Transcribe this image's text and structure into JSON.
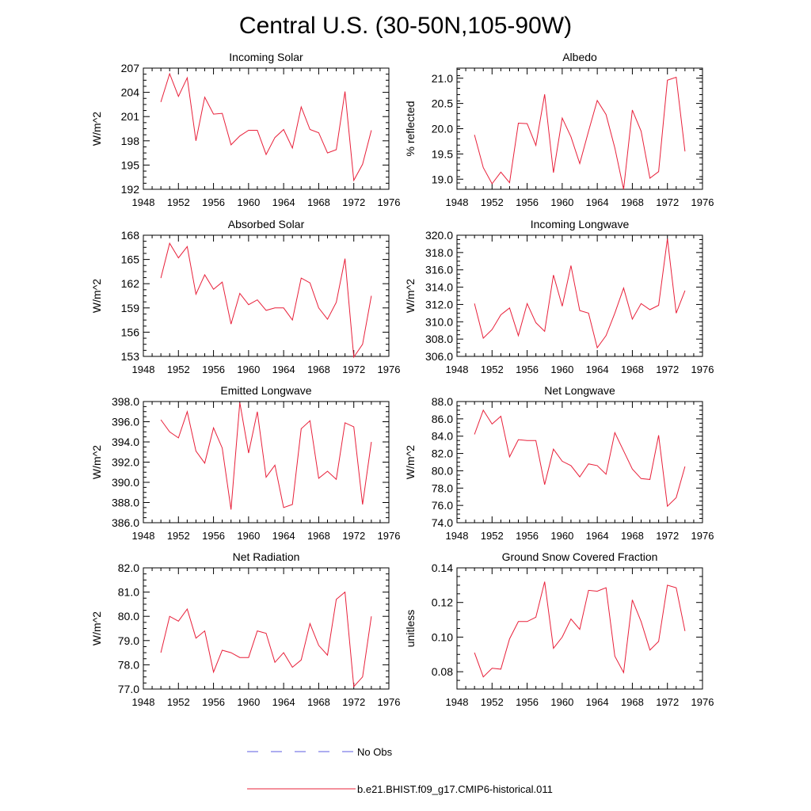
{
  "figure": {
    "title": "Central U.S. (30-50N,105-90W)"
  },
  "legend": {
    "position": "bottom-center",
    "entries": [
      {
        "label": "No Obs",
        "color": "#5b5be0",
        "style": "dashed"
      },
      {
        "label": "b.e21.BHIST.f09_g17.CMIP6-historical.011",
        "color": "#e8203a",
        "style": "solid"
      }
    ]
  },
  "chart_data": [
    {
      "type": "line",
      "title": "Incoming Solar",
      "xlabel": "",
      "ylabel": "W/m^2",
      "xlim": [
        1948,
        1976
      ],
      "ylim": [
        192,
        207
      ],
      "xticks": [
        1948,
        1952,
        1956,
        1960,
        1964,
        1968,
        1972,
        1976
      ],
      "yticks": [
        192,
        195,
        198,
        201,
        204,
        207
      ],
      "ytick_labels": [
        "192",
        "195",
        "198",
        "201",
        "204",
        "207"
      ],
      "color": "#e8203a",
      "x": [
        1950,
        1951,
        1952,
        1953,
        1954,
        1955,
        1956,
        1957,
        1958,
        1959,
        1960,
        1961,
        1962,
        1963,
        1964,
        1965,
        1966,
        1967,
        1968,
        1969,
        1970,
        1971,
        1972,
        1973,
        1974
      ],
      "y": [
        202.8,
        206.3,
        203.5,
        205.8,
        198.0,
        203.4,
        201.3,
        201.4,
        197.5,
        198.6,
        199.3,
        199.3,
        196.3,
        198.4,
        199.4,
        197.1,
        202.2,
        199.4,
        199.0,
        196.5,
        196.9,
        204.1,
        193.1,
        195.1,
        199.3
      ]
    },
    {
      "type": "line",
      "title": "Albedo",
      "xlabel": "",
      "ylabel": "% reflected",
      "xlim": [
        1948,
        1976
      ],
      "ylim": [
        18.8,
        21.2
      ],
      "xticks": [
        1948,
        1952,
        1956,
        1960,
        1964,
        1968,
        1972,
        1976
      ],
      "yticks": [
        19.0,
        19.5,
        20.0,
        20.5,
        21.0
      ],
      "ytick_labels": [
        "19.0",
        "19.5",
        "20.0",
        "20.5",
        "21.0"
      ],
      "color": "#e8203a",
      "x": [
        1950,
        1951,
        1952,
        1953,
        1954,
        1955,
        1956,
        1957,
        1958,
        1959,
        1960,
        1961,
        1962,
        1963,
        1964,
        1965,
        1966,
        1967,
        1968,
        1969,
        1970,
        1971,
        1972,
        1973,
        1974
      ],
      "y": [
        19.88,
        19.23,
        18.91,
        19.14,
        18.93,
        20.11,
        20.1,
        19.67,
        20.68,
        19.13,
        20.21,
        19.84,
        19.31,
        19.95,
        20.56,
        20.28,
        19.62,
        18.8,
        20.37,
        19.95,
        19.02,
        19.15,
        20.96,
        21.02,
        19.55
      ]
    },
    {
      "type": "line",
      "title": "Absorbed Solar",
      "xlabel": "",
      "ylabel": "W/m^2",
      "xlim": [
        1948,
        1976
      ],
      "ylim": [
        153,
        168
      ],
      "xticks": [
        1948,
        1952,
        1956,
        1960,
        1964,
        1968,
        1972,
        1976
      ],
      "yticks": [
        153,
        156,
        159,
        162,
        165,
        168
      ],
      "ytick_labels": [
        "153",
        "156",
        "159",
        "162",
        "165",
        "168"
      ],
      "color": "#e8203a",
      "x": [
        1950,
        1951,
        1952,
        1953,
        1954,
        1955,
        1956,
        1957,
        1958,
        1959,
        1960,
        1961,
        1962,
        1963,
        1964,
        1965,
        1966,
        1967,
        1968,
        1969,
        1970,
        1971,
        1972,
        1973,
        1974
      ],
      "y": [
        162.7,
        167.0,
        165.2,
        166.6,
        160.7,
        163.1,
        161.3,
        162.2,
        157.0,
        160.8,
        159.4,
        160.0,
        158.7,
        159.0,
        159.0,
        157.5,
        162.7,
        162.1,
        159.0,
        157.6,
        159.7,
        165.1,
        152.9,
        154.5,
        160.5
      ]
    },
    {
      "type": "line",
      "title": "Incoming Longwave",
      "xlabel": "",
      "ylabel": "W/m^2",
      "xlim": [
        1948,
        1976
      ],
      "ylim": [
        306,
        320
      ],
      "xticks": [
        1948,
        1952,
        1956,
        1960,
        1964,
        1968,
        1972,
        1976
      ],
      "yticks": [
        306,
        308,
        310,
        312,
        314,
        316,
        318,
        320
      ],
      "ytick_labels": [
        "306.0",
        "308.0",
        "310.0",
        "312.0",
        "314.0",
        "316.0",
        "318.0",
        "320.0"
      ],
      "color": "#e8203a",
      "x": [
        1950,
        1951,
        1952,
        1953,
        1954,
        1955,
        1956,
        1957,
        1958,
        1959,
        1960,
        1961,
        1962,
        1963,
        1964,
        1965,
        1966,
        1967,
        1968,
        1969,
        1970,
        1971,
        1972,
        1973,
        1974
      ],
      "y": [
        312.1,
        308.1,
        309.1,
        310.8,
        311.6,
        308.4,
        312.1,
        309.9,
        308.9,
        315.4,
        311.8,
        316.5,
        311.3,
        311.0,
        307.0,
        308.4,
        311.0,
        313.9,
        310.3,
        312.1,
        311.4,
        311.9,
        319.6,
        311.0,
        313.6
      ]
    },
    {
      "type": "line",
      "title": "Emitted Longwave",
      "xlabel": "",
      "ylabel": "W/m^2",
      "xlim": [
        1948,
        1976
      ],
      "ylim": [
        386,
        398
      ],
      "xticks": [
        1948,
        1952,
        1956,
        1960,
        1964,
        1968,
        1972,
        1976
      ],
      "yticks": [
        386,
        388,
        390,
        392,
        394,
        396,
        398
      ],
      "ytick_labels": [
        "386.0",
        "388.0",
        "390.0",
        "392.0",
        "394.0",
        "396.0",
        "398.0"
      ],
      "color": "#e8203a",
      "x": [
        1950,
        1951,
        1952,
        1953,
        1954,
        1955,
        1956,
        1957,
        1958,
        1959,
        1960,
        1961,
        1962,
        1963,
        1964,
        1965,
        1966,
        1967,
        1968,
        1969,
        1970,
        1971,
        1972,
        1973,
        1974
      ],
      "y": [
        396.2,
        395.0,
        394.4,
        397.0,
        393.1,
        391.9,
        395.4,
        393.4,
        387.3,
        397.9,
        392.9,
        397.0,
        390.5,
        391.7,
        387.5,
        387.8,
        395.3,
        396.1,
        390.4,
        391.1,
        390.3,
        395.9,
        395.5,
        387.8,
        394.0
      ]
    },
    {
      "type": "line",
      "title": "Net Longwave",
      "xlabel": "",
      "ylabel": "W/m^2",
      "xlim": [
        1948,
        1976
      ],
      "ylim": [
        74,
        88
      ],
      "xticks": [
        1948,
        1952,
        1956,
        1960,
        1964,
        1968,
        1972,
        1976
      ],
      "yticks": [
        74,
        76,
        78,
        80,
        82,
        84,
        86,
        88
      ],
      "ytick_labels": [
        "74.0",
        "76.0",
        "78.0",
        "80.0",
        "82.0",
        "84.0",
        "86.0",
        "88.0"
      ],
      "color": "#e8203a",
      "x": [
        1950,
        1951,
        1952,
        1953,
        1954,
        1955,
        1956,
        1957,
        1958,
        1959,
        1960,
        1961,
        1962,
        1963,
        1964,
        1965,
        1966,
        1967,
        1968,
        1969,
        1970,
        1971,
        1972,
        1973,
        1974
      ],
      "y": [
        84.2,
        87.0,
        85.4,
        86.3,
        81.6,
        83.6,
        83.5,
        83.5,
        78.4,
        82.5,
        81.1,
        80.6,
        79.3,
        80.8,
        80.6,
        79.6,
        84.4,
        82.3,
        80.2,
        79.1,
        79.0,
        84.1,
        75.9,
        76.9,
        80.5
      ]
    },
    {
      "type": "line",
      "title": "Net Radiation",
      "xlabel": "",
      "ylabel": "W/m^2",
      "xlim": [
        1948,
        1976
      ],
      "ylim": [
        77,
        82
      ],
      "xticks": [
        1948,
        1952,
        1956,
        1960,
        1964,
        1968,
        1972,
        1976
      ],
      "yticks": [
        77,
        78,
        79,
        80,
        81,
        82
      ],
      "ytick_labels": [
        "77.0",
        "78.0",
        "79.0",
        "80.0",
        "81.0",
        "82.0"
      ],
      "color": "#e8203a",
      "x": [
        1950,
        1951,
        1952,
        1953,
        1954,
        1955,
        1956,
        1957,
        1958,
        1959,
        1960,
        1961,
        1962,
        1963,
        1964,
        1965,
        1966,
        1967,
        1968,
        1969,
        1970,
        1971,
        1972,
        1973,
        1974
      ],
      "y": [
        78.5,
        80.0,
        79.8,
        80.3,
        79.1,
        79.4,
        77.7,
        78.6,
        78.5,
        78.3,
        78.3,
        79.4,
        79.3,
        78.1,
        78.5,
        77.9,
        78.2,
        79.7,
        78.8,
        78.4,
        80.7,
        81.0,
        77.1,
        77.5,
        80.0
      ]
    },
    {
      "type": "line",
      "title": "Ground Snow Covered Fraction",
      "xlabel": "",
      "ylabel": "unitless",
      "xlim": [
        1948,
        1976
      ],
      "ylim": [
        0.07,
        0.14
      ],
      "xticks": [
        1948,
        1952,
        1956,
        1960,
        1964,
        1968,
        1972,
        1976
      ],
      "yticks": [
        0.08,
        0.1,
        0.12,
        0.14
      ],
      "ytick_labels": [
        "0.08",
        "0.10",
        "0.12",
        "0.14"
      ],
      "color": "#e8203a",
      "x": [
        1950,
        1951,
        1952,
        1953,
        1954,
        1955,
        1956,
        1957,
        1958,
        1959,
        1960,
        1961,
        1962,
        1963,
        1964,
        1965,
        1966,
        1967,
        1968,
        1969,
        1970,
        1971,
        1972,
        1973,
        1974
      ],
      "y": [
        0.091,
        0.077,
        0.082,
        0.0815,
        0.099,
        0.109,
        0.109,
        0.1115,
        0.132,
        0.0935,
        0.1,
        0.1105,
        0.1045,
        0.127,
        0.1265,
        0.1285,
        0.089,
        0.0795,
        0.1215,
        0.109,
        0.0925,
        0.0975,
        0.13,
        0.1285,
        0.1035
      ]
    }
  ]
}
